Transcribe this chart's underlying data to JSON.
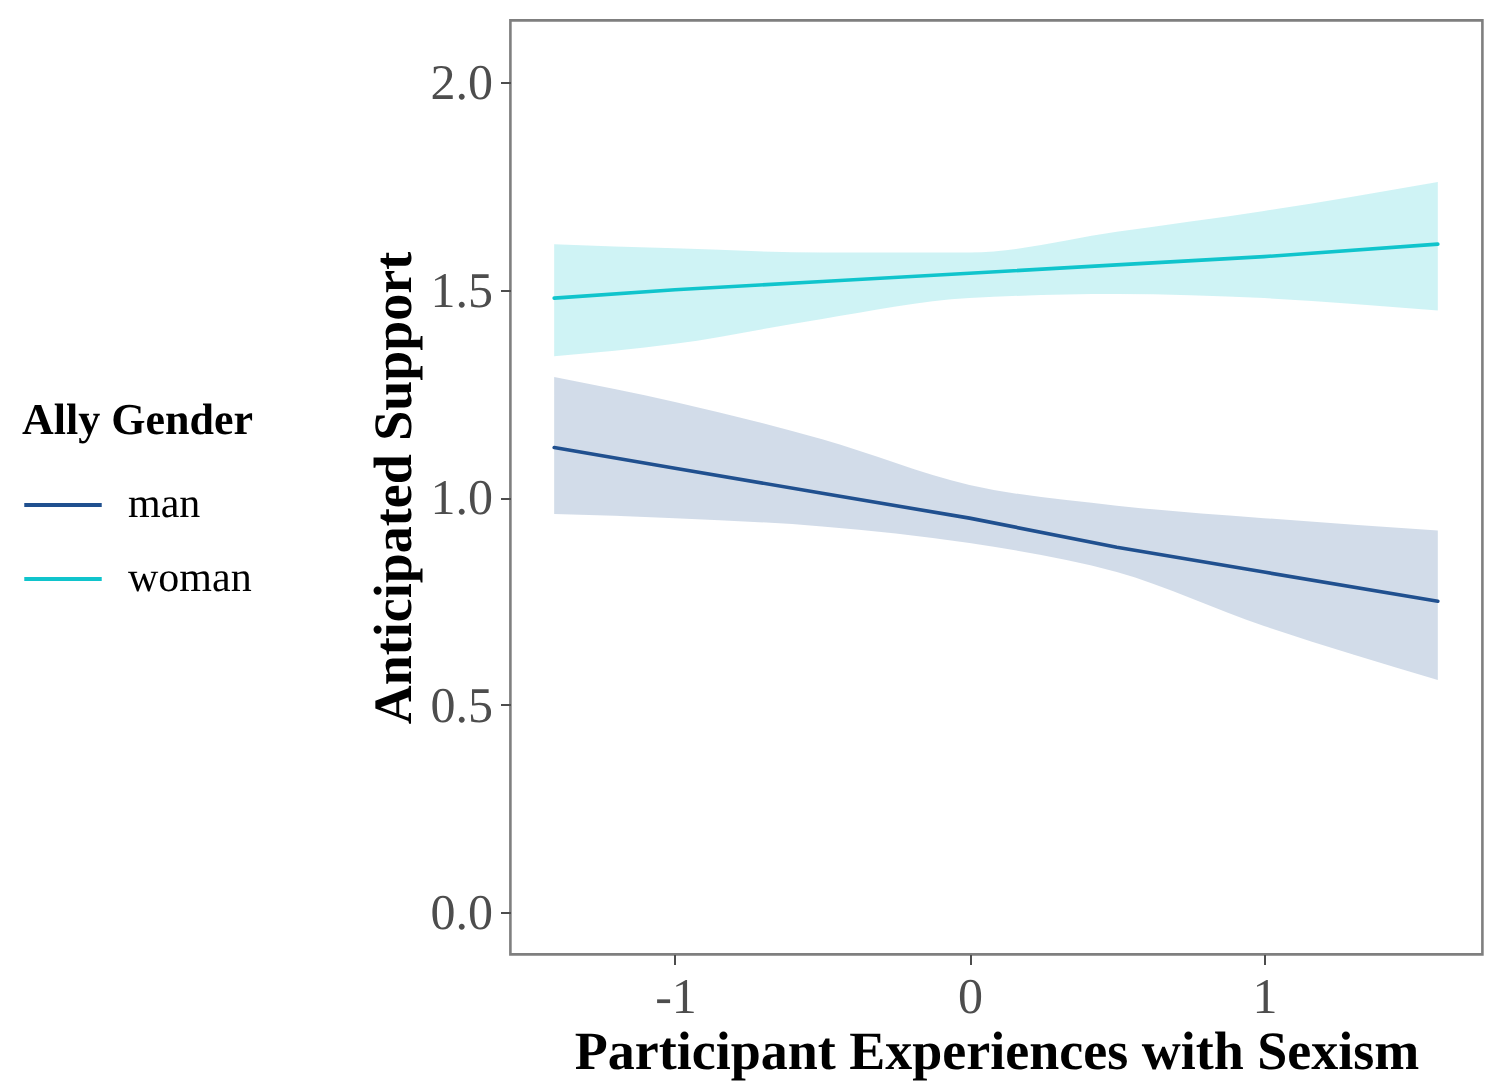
{
  "chart_data": {
    "type": "line",
    "xlabel": "Participant Experiences with Sexism",
    "ylabel": "Anticipated Support",
    "legend_title": "Ally Gender",
    "x": [
      -1.41,
      -1,
      -0.5,
      0,
      0.5,
      1,
      1.59
    ],
    "series": [
      {
        "name": "man",
        "color": "#20508f",
        "values": [
          1.12,
          1.07,
          1.01,
          0.95,
          0.88,
          0.82,
          0.75
        ],
        "lower": [
          0.96,
          0.95,
          0.93,
          0.89,
          0.82,
          0.69,
          0.56
        ],
        "upper": [
          1.29,
          1.23,
          1.14,
          1.03,
          0.98,
          0.95,
          0.92
        ]
      },
      {
        "name": "woman",
        "color": "#10c4cc",
        "values": [
          1.48,
          1.5,
          1.52,
          1.54,
          1.56,
          1.58,
          1.61
        ],
        "lower": [
          1.34,
          1.37,
          1.43,
          1.48,
          1.49,
          1.48,
          1.45
        ],
        "upper": [
          1.61,
          1.6,
          1.59,
          1.59,
          1.64,
          1.69,
          1.76
        ]
      }
    ],
    "xlim": [
      -1.56,
      1.74
    ],
    "ylim": [
      -0.1,
      2.15
    ],
    "xticks": [
      {
        "value": -1,
        "label": "-1"
      },
      0,
      1
    ],
    "yticks": [
      {
        "value": 0,
        "label": "0.0"
      },
      0.5,
      {
        "value": 1,
        "label": "1.0"
      },
      1.5,
      {
        "value": 2,
        "label": "2.0"
      }
    ],
    "legend": "left",
    "line_style": "solid"
  }
}
